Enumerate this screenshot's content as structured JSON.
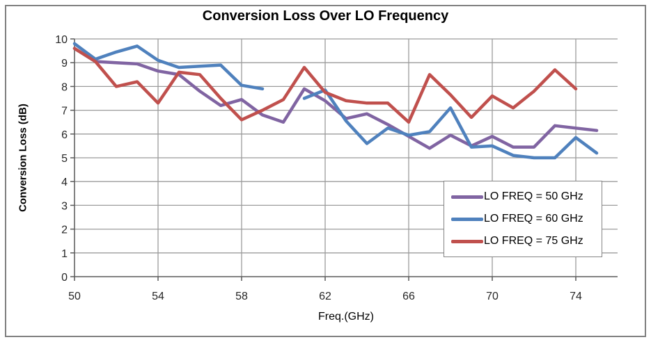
{
  "chart_data": {
    "type": "line",
    "title": "Conversion Loss Over LO Frequency",
    "xlabel": "Freq.(GHz)",
    "ylabel": "Conversion Loss (dB)",
    "xlim": [
      50,
      76
    ],
    "ylim": [
      0,
      10
    ],
    "x_ticks": [
      50,
      54,
      58,
      62,
      66,
      70,
      74
    ],
    "y_ticks": [
      0,
      1,
      2,
      3,
      4,
      5,
      6,
      7,
      8,
      9,
      10
    ],
    "grid": true,
    "legend_position": "inside-right",
    "x": [
      50,
      51,
      52,
      53,
      54,
      55,
      56,
      57,
      58,
      59,
      60,
      61,
      62,
      63,
      64,
      65,
      66,
      67,
      68,
      69,
      70,
      71,
      72,
      73,
      74,
      75
    ],
    "series": [
      {
        "name": "LO FREQ = 50 GHz",
        "color": "#8064A2",
        "values": [
          9.6,
          9.05,
          9.0,
          8.95,
          8.65,
          8.5,
          7.8,
          7.2,
          7.45,
          6.8,
          6.5,
          7.9,
          7.4,
          6.65,
          6.85,
          6.4,
          5.9,
          5.4,
          5.95,
          5.5,
          5.9,
          5.45,
          5.45,
          6.35,
          6.25,
          6.15
        ]
      },
      {
        "name": "LO FREQ = 60 GHz",
        "color": "#4F81BD",
        "values": [
          9.8,
          9.15,
          9.45,
          9.7,
          9.1,
          8.8,
          8.85,
          8.9,
          8.05,
          7.9,
          null,
          7.5,
          7.85,
          6.55,
          5.6,
          6.25,
          5.95,
          6.1,
          7.1,
          5.45,
          5.5,
          5.1,
          5.0,
          5.0,
          5.85,
          5.2
        ]
      },
      {
        "name": "LO FREQ = 75 GHz",
        "color": "#C0504D",
        "values": [
          9.6,
          9.05,
          8.0,
          8.2,
          7.3,
          8.6,
          8.5,
          7.5,
          6.6,
          7.0,
          7.45,
          8.8,
          7.75,
          7.4,
          7.3,
          7.3,
          6.5,
          8.5,
          7.65,
          6.7,
          7.6,
          7.1,
          7.8,
          8.7,
          7.9,
          null
        ]
      }
    ]
  },
  "style": {
    "gridline_color": "#9B9B9B",
    "axis_color": "#595959",
    "tick_label_color": "#262626",
    "frame_border_color": "#808080",
    "legend_border_color": "#848484",
    "background": "#FFFFFF"
  }
}
